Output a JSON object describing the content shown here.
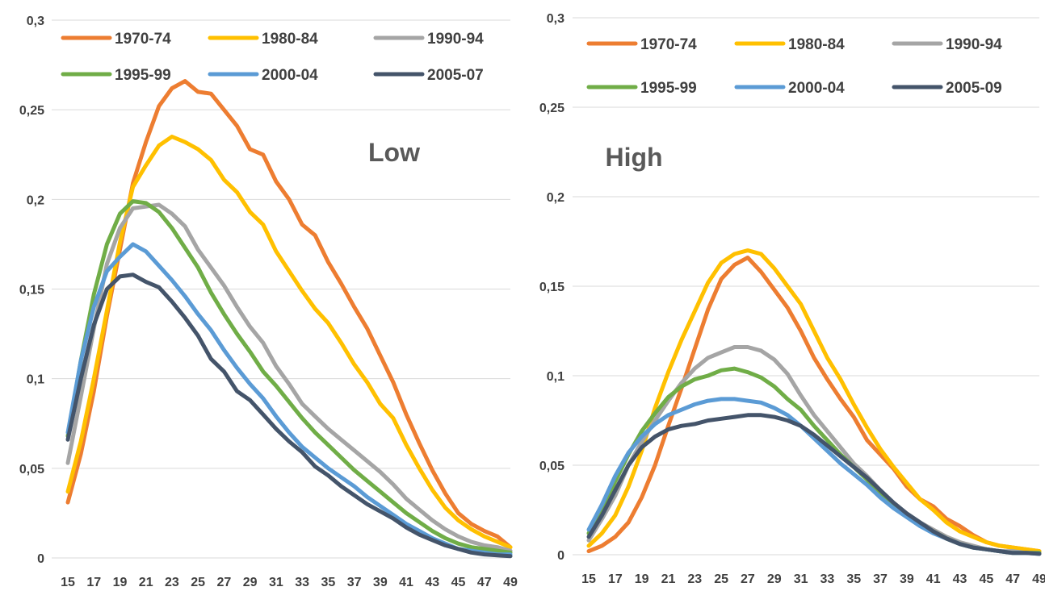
{
  "chart_data": [
    {
      "type": "line",
      "panel_label": "Low",
      "x": [
        15,
        16,
        17,
        18,
        19,
        20,
        21,
        22,
        23,
        24,
        25,
        26,
        27,
        28,
        29,
        30,
        31,
        32,
        33,
        34,
        35,
        36,
        37,
        38,
        39,
        40,
        41,
        42,
        43,
        44,
        45,
        46,
        47,
        48,
        49
      ],
      "x_ticks": [
        "15",
        "17",
        "19",
        "21",
        "23",
        "25",
        "27",
        "29",
        "31",
        "33",
        "35",
        "37",
        "39",
        "41",
        "43",
        "45",
        "47",
        "49"
      ],
      "y_ticks": [
        "0",
        "0,05",
        "0,1",
        "0,15",
        "0,2",
        "0,25",
        "0,3"
      ],
      "ylim": [
        0,
        0.3
      ],
      "legend": "top",
      "grid": true,
      "series": [
        {
          "name": "1970-74",
          "color": "#ED7D31",
          "values": [
            0.031,
            0.058,
            0.093,
            0.135,
            0.172,
            0.209,
            0.232,
            0.252,
            0.262,
            0.266,
            0.26,
            0.259,
            0.25,
            0.241,
            0.228,
            0.225,
            0.21,
            0.2,
            0.186,
            0.18,
            0.165,
            0.153,
            0.14,
            0.128,
            0.113,
            0.098,
            0.08,
            0.064,
            0.049,
            0.036,
            0.025,
            0.019,
            0.015,
            0.012,
            0.006
          ]
        },
        {
          "name": "1980-84",
          "color": "#FFC000",
          "values": [
            0.037,
            0.065,
            0.1,
            0.138,
            0.176,
            0.207,
            0.219,
            0.23,
            0.235,
            0.232,
            0.228,
            0.222,
            0.211,
            0.204,
            0.193,
            0.186,
            0.171,
            0.16,
            0.149,
            0.139,
            0.131,
            0.12,
            0.108,
            0.098,
            0.086,
            0.078,
            0.063,
            0.05,
            0.038,
            0.028,
            0.021,
            0.016,
            0.012,
            0.009,
            0.006
          ]
        },
        {
          "name": "1990-94",
          "color": "#A5A5A5",
          "values": [
            0.053,
            0.09,
            0.128,
            0.164,
            0.184,
            0.195,
            0.196,
            0.197,
            0.192,
            0.185,
            0.172,
            0.162,
            0.152,
            0.14,
            0.129,
            0.12,
            0.107,
            0.097,
            0.086,
            0.079,
            0.072,
            0.066,
            0.06,
            0.054,
            0.048,
            0.041,
            0.033,
            0.027,
            0.021,
            0.016,
            0.012,
            0.009,
            0.007,
            0.006,
            0.004
          ]
        },
        {
          "name": "1995-99",
          "color": "#70AD47",
          "values": [
            0.068,
            0.11,
            0.147,
            0.175,
            0.192,
            0.199,
            0.198,
            0.193,
            0.184,
            0.173,
            0.162,
            0.148,
            0.136,
            0.125,
            0.115,
            0.104,
            0.096,
            0.087,
            0.078,
            0.07,
            0.063,
            0.056,
            0.049,
            0.043,
            0.037,
            0.031,
            0.025,
            0.02,
            0.015,
            0.011,
            0.008,
            0.006,
            0.005,
            0.004,
            0.003
          ]
        },
        {
          "name": "2000-04",
          "color": "#5B9BD5",
          "values": [
            0.07,
            0.11,
            0.14,
            0.16,
            0.168,
            0.175,
            0.171,
            0.163,
            0.155,
            0.146,
            0.136,
            0.127,
            0.116,
            0.106,
            0.097,
            0.089,
            0.079,
            0.07,
            0.062,
            0.056,
            0.05,
            0.045,
            0.04,
            0.034,
            0.029,
            0.024,
            0.019,
            0.015,
            0.011,
            0.008,
            0.005,
            0.004,
            0.003,
            0.002,
            0.002
          ]
        },
        {
          "name": "2005-07",
          "color": "#44546A",
          "values": [
            0.066,
            0.1,
            0.13,
            0.15,
            0.157,
            0.158,
            0.154,
            0.151,
            0.143,
            0.134,
            0.124,
            0.111,
            0.104,
            0.093,
            0.088,
            0.08,
            0.072,
            0.065,
            0.059,
            0.051,
            0.046,
            0.04,
            0.035,
            0.03,
            0.026,
            0.022,
            0.017,
            0.013,
            0.01,
            0.007,
            0.005,
            0.003,
            0.002,
            0.0015,
            0.001
          ]
        }
      ]
    },
    {
      "type": "line",
      "panel_label": "High",
      "x": [
        15,
        16,
        17,
        18,
        19,
        20,
        21,
        22,
        23,
        24,
        25,
        26,
        27,
        28,
        29,
        30,
        31,
        32,
        33,
        34,
        35,
        36,
        37,
        38,
        39,
        40,
        41,
        42,
        43,
        44,
        45,
        46,
        47,
        48,
        49
      ],
      "x_ticks": [
        "15",
        "17",
        "19",
        "21",
        "23",
        "25",
        "27",
        "29",
        "31",
        "33",
        "35",
        "37",
        "39",
        "41",
        "43",
        "45",
        "47",
        "49"
      ],
      "y_ticks": [
        "0",
        "0,05",
        "0,1",
        "0,15",
        "0,2",
        "0,25",
        "0,3"
      ],
      "ylim": [
        0,
        0.3
      ],
      "legend": "top",
      "grid": true,
      "series": [
        {
          "name": "1970-74",
          "color": "#ED7D31",
          "values": [
            0.002,
            0.005,
            0.01,
            0.018,
            0.032,
            0.05,
            0.072,
            0.093,
            0.115,
            0.137,
            0.154,
            0.162,
            0.166,
            0.158,
            0.148,
            0.138,
            0.125,
            0.11,
            0.098,
            0.087,
            0.077,
            0.064,
            0.056,
            0.048,
            0.038,
            0.031,
            0.027,
            0.02,
            0.016,
            0.011,
            0.007,
            0.005,
            0.004,
            0.003,
            0.002
          ]
        },
        {
          "name": "1980-84",
          "color": "#FFC000",
          "values": [
            0.005,
            0.012,
            0.022,
            0.038,
            0.058,
            0.082,
            0.102,
            0.12,
            0.136,
            0.152,
            0.163,
            0.168,
            0.17,
            0.168,
            0.16,
            0.15,
            0.14,
            0.125,
            0.11,
            0.098,
            0.084,
            0.071,
            0.059,
            0.049,
            0.04,
            0.031,
            0.025,
            0.018,
            0.013,
            0.01,
            0.007,
            0.005,
            0.004,
            0.003,
            0.002
          ]
        },
        {
          "name": "1990-94",
          "color": "#A5A5A5",
          "values": [
            0.008,
            0.02,
            0.033,
            0.05,
            0.063,
            0.075,
            0.086,
            0.096,
            0.104,
            0.11,
            0.113,
            0.116,
            0.116,
            0.114,
            0.109,
            0.101,
            0.089,
            0.078,
            0.069,
            0.06,
            0.051,
            0.044,
            0.036,
            0.029,
            0.023,
            0.018,
            0.014,
            0.01,
            0.007,
            0.005,
            0.003,
            0.002,
            0.002,
            0.001,
            0.001
          ]
        },
        {
          "name": "1995-99",
          "color": "#70AD47",
          "values": [
            0.012,
            0.025,
            0.041,
            0.056,
            0.069,
            0.079,
            0.088,
            0.094,
            0.098,
            0.1,
            0.103,
            0.104,
            0.102,
            0.099,
            0.094,
            0.087,
            0.081,
            0.072,
            0.064,
            0.056,
            0.049,
            0.042,
            0.034,
            0.028,
            0.022,
            0.017,
            0.013,
            0.009,
            0.006,
            0.004,
            0.003,
            0.002,
            0.001,
            0.001,
            0.001
          ]
        },
        {
          "name": "2000-04",
          "color": "#5B9BD5",
          "values": [
            0.014,
            0.028,
            0.044,
            0.057,
            0.066,
            0.073,
            0.078,
            0.081,
            0.084,
            0.086,
            0.087,
            0.087,
            0.086,
            0.085,
            0.082,
            0.078,
            0.072,
            0.065,
            0.058,
            0.051,
            0.045,
            0.039,
            0.032,
            0.026,
            0.021,
            0.016,
            0.012,
            0.009,
            0.006,
            0.004,
            0.003,
            0.002,
            0.001,
            0.001,
            0.0005
          ]
        },
        {
          "name": "2005-09",
          "color": "#44546A",
          "values": [
            0.01,
            0.022,
            0.036,
            0.05,
            0.06,
            0.066,
            0.07,
            0.072,
            0.073,
            0.075,
            0.076,
            0.077,
            0.078,
            0.078,
            0.077,
            0.075,
            0.072,
            0.067,
            0.061,
            0.055,
            0.049,
            0.043,
            0.036,
            0.029,
            0.023,
            0.018,
            0.013,
            0.009,
            0.006,
            0.004,
            0.003,
            0.002,
            0.001,
            0.001,
            0.0005
          ]
        }
      ]
    }
  ]
}
